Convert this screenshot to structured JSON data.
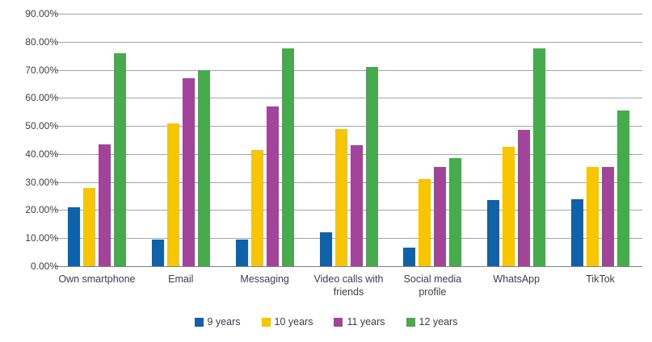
{
  "chart_data": {
    "type": "bar",
    "title": "",
    "xlabel": "",
    "ylabel": "",
    "categories": [
      "Own smartphone",
      "Email",
      "Messaging",
      "Video calls with friends",
      "Social media profile",
      "WhatsApp",
      "TikTok"
    ],
    "series": [
      {
        "name": "9 years",
        "color": "#0F61A9",
        "values": [
          21,
          9.5,
          9.5,
          12,
          6.5,
          23.5,
          24
        ]
      },
      {
        "name": "10 years",
        "color": "#F7C600",
        "values": [
          28,
          51,
          41.5,
          49,
          31,
          42.5,
          35.5
        ]
      },
      {
        "name": "11 years",
        "color": "#A2459A",
        "values": [
          43.5,
          67,
          57,
          43,
          35.5,
          48.5,
          35.5
        ]
      },
      {
        "name": "12 years",
        "color": "#45AB4C",
        "values": [
          76,
          70,
          77.5,
          71,
          38.5,
          77.5,
          55.5
        ]
      }
    ],
    "ylim": [
      0,
      90
    ],
    "y_ticks": [
      "90.00%",
      "80.00%",
      "70.00%",
      "60.00%",
      "50.00%",
      "40.00%",
      "30.00%",
      "20.00%",
      "10.00%",
      "0.00%"
    ],
    "grid": true,
    "legend_position": "bottom",
    "colors": {
      "gridline": "#a6a6a6",
      "axis_line": "#808080",
      "text": "#3d3d4f",
      "background": "#ffffff"
    }
  }
}
